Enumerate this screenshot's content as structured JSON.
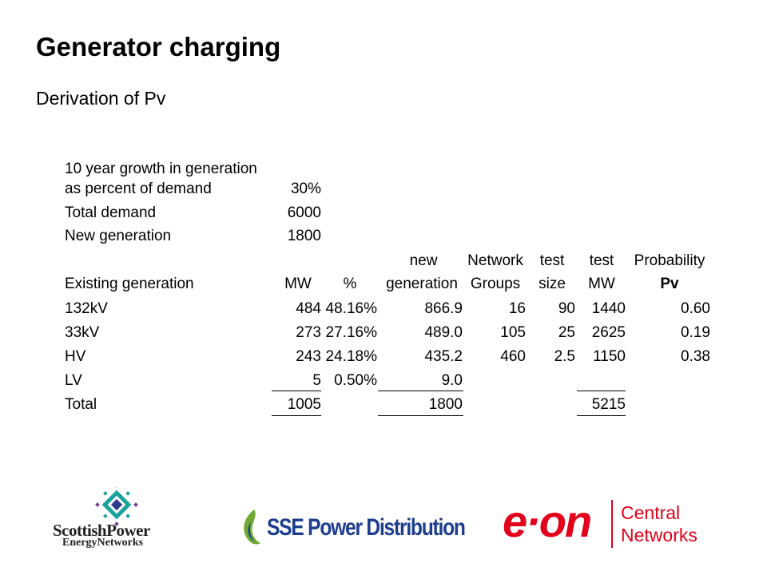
{
  "slide": {
    "title": "Generator charging",
    "subtitle": "Derivation of Pv"
  },
  "params": {
    "growth_label_1": "10 year growth in generation",
    "growth_label_2": "as percent of demand",
    "growth_value": "30%",
    "demand_label": "Total demand",
    "demand_value": "6000",
    "newgen_label": "New generation",
    "newgen_value": "1800"
  },
  "table": {
    "headers_top": [
      "new",
      "Network",
      "test",
      "test",
      "Probability"
    ],
    "headers": [
      "Existing generation",
      "MW",
      "%",
      "generation",
      "Groups",
      "size",
      "MW",
      "Pv"
    ],
    "rows": [
      [
        "132kV",
        "484",
        "48.16%",
        "866.9",
        "16",
        "90",
        "1440",
        "0.60"
      ],
      [
        "33kV",
        "273",
        "27.16%",
        "489.0",
        "105",
        "25",
        "2625",
        "0.19"
      ],
      [
        "HV",
        "243",
        "24.18%",
        "435.2",
        "460",
        "2.5",
        "1150",
        "0.38"
      ],
      [
        "LV",
        "5",
        "0.50%",
        "9.0",
        "",
        "",
        "",
        ""
      ]
    ],
    "total": [
      "Total",
      "1005",
      "1800",
      "5215"
    ]
  },
  "logos": {
    "scottish_1": "ScottishPower",
    "scottish_2": "EnergyNetworks",
    "sse": "SSE Power Distribution",
    "eon": "e·on",
    "eon_sub_1": "Central",
    "eon_sub_2": "Networks"
  },
  "colors": {
    "sse_green": "#6fa832",
    "sse_blue": "#1d3d8f",
    "eon_red": "#e2001a",
    "scottish_teal": "#1aa39a"
  }
}
